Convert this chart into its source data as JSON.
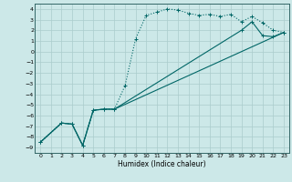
{
  "xlabel": "Humidex (Indice chaleur)",
  "bg_color": "#cce8e8",
  "grid_color": "#aacccc",
  "line_color": "#006666",
  "xlim": [
    -0.5,
    23.5
  ],
  "ylim": [
    -9.5,
    4.5
  ],
  "xticks": [
    0,
    1,
    2,
    3,
    4,
    5,
    6,
    7,
    8,
    9,
    10,
    11,
    12,
    13,
    14,
    15,
    16,
    17,
    18,
    19,
    20,
    21,
    22,
    23
  ],
  "yticks": [
    4,
    3,
    2,
    1,
    0,
    -1,
    -2,
    -3,
    -4,
    -5,
    -6,
    -7,
    -8,
    -9
  ],
  "line1_x": [
    0,
    2,
    3,
    4,
    5,
    6,
    7,
    8,
    9,
    10,
    11,
    12,
    13,
    14,
    15,
    16,
    17,
    18,
    19,
    20,
    21,
    22,
    23
  ],
  "line1_y": [
    -8.5,
    -6.7,
    -6.8,
    -8.8,
    -5.5,
    -5.4,
    -5.4,
    -3.2,
    1.2,
    3.4,
    3.7,
    4.0,
    3.9,
    3.6,
    3.4,
    3.5,
    3.3,
    3.5,
    2.8,
    3.3,
    2.7,
    2.0,
    1.8
  ],
  "line2_x": [
    0,
    2,
    3,
    4,
    5,
    6,
    7,
    19,
    20,
    21,
    22,
    23
  ],
  "line2_y": [
    -8.5,
    -6.7,
    -6.8,
    -8.8,
    -5.5,
    -5.4,
    -5.4,
    2.0,
    2.8,
    1.5,
    1.4,
    1.8
  ],
  "line3_x": [
    0,
    2,
    3,
    4,
    5,
    6,
    7,
    23
  ],
  "line3_y": [
    -8.5,
    -6.7,
    -6.8,
    -8.8,
    -5.5,
    -5.4,
    -5.4,
    1.8
  ]
}
